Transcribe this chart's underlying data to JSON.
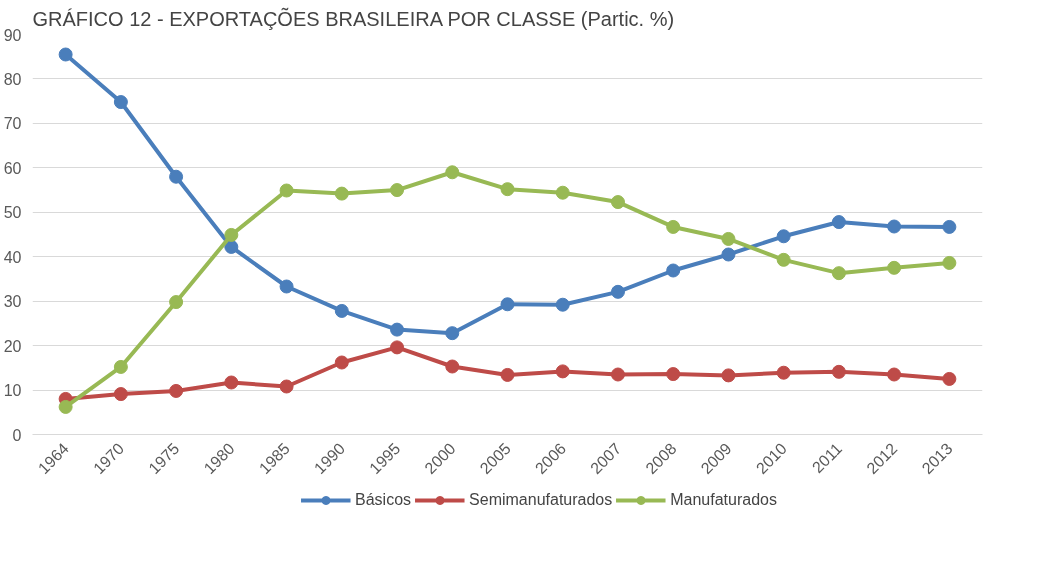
{
  "chart_data": {
    "type": "line",
    "title": "GRÁFICO 12 - EXPORTAÇÕES BRASILEIRA POR CLASSE (Partic. %)",
    "categories": [
      "1964",
      "1970",
      "1975",
      "1980",
      "1985",
      "1990",
      "1995",
      "2000",
      "2005",
      "2006",
      "2007",
      "2008",
      "2009",
      "2010",
      "2011",
      "2012",
      "2013"
    ],
    "series": [
      {
        "name": "Básicos",
        "color": "#4a7ebb",
        "values": [
          85.5,
          74.8,
          58,
          42.2,
          33.3,
          27.8,
          23.6,
          22.8,
          29.3,
          29.2,
          32.1,
          36.9,
          40.5,
          44.6,
          47.8,
          46.8,
          46.7
        ]
      },
      {
        "name": "Semimanufaturados",
        "color": "#be4b48",
        "values": [
          8,
          9.1,
          9.8,
          11.7,
          10.8,
          16.2,
          19.6,
          15.3,
          13.4,
          14.2,
          13.5,
          13.6,
          13.3,
          13.9,
          14.1,
          13.5,
          12.5
        ]
      },
      {
        "name": "Manufaturados",
        "color": "#98b954",
        "values": [
          6.2,
          15.2,
          29.8,
          44.9,
          54.9,
          54.2,
          55.0,
          59.0,
          55.2,
          54.4,
          52.3,
          46.7,
          44.0,
          39.3,
          36.3,
          37.5,
          38.6
        ]
      }
    ],
    "ylim": [
      0,
      90
    ],
    "yticks": [
      0,
      10,
      20,
      30,
      40,
      50,
      60,
      70,
      80,
      90
    ],
    "grid": "y",
    "legend": "bottom",
    "marker": "circle",
    "line_style": "solid"
  }
}
